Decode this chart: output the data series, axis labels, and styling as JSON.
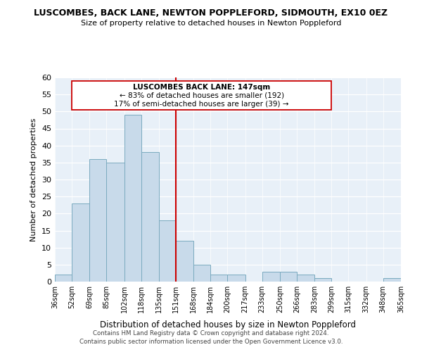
{
  "title": "LUSCOMBES, BACK LANE, NEWTON POPPLEFORD, SIDMOUTH, EX10 0EZ",
  "subtitle": "Size of property relative to detached houses in Newton Poppleford",
  "xlabel": "Distribution of detached houses by size in Newton Poppleford",
  "ylabel": "Number of detached properties",
  "bin_edges": [
    36,
    52,
    69,
    85,
    102,
    118,
    135,
    151,
    168,
    184,
    200,
    217,
    233,
    250,
    266,
    283,
    299,
    315,
    332,
    348,
    365
  ],
  "bin_labels": [
    "36sqm",
    "52sqm",
    "69sqm",
    "85sqm",
    "102sqm",
    "118sqm",
    "135sqm",
    "151sqm",
    "168sqm",
    "184sqm",
    "200sqm",
    "217sqm",
    "233sqm",
    "250sqm",
    "266sqm",
    "283sqm",
    "299sqm",
    "315sqm",
    "332sqm",
    "348sqm",
    "365sqm"
  ],
  "counts": [
    2,
    23,
    36,
    35,
    49,
    38,
    18,
    12,
    5,
    2,
    2,
    0,
    3,
    3,
    2,
    1,
    0,
    0,
    0,
    1
  ],
  "bar_color": "#c8daea",
  "bar_edge_color": "#7aaabf",
  "vline_x": 151,
  "vline_color": "#cc0000",
  "annotation_title": "LUSCOMBES BACK LANE: 147sqm",
  "annotation_line1": "← 83% of detached houses are smaller (192)",
  "annotation_line2": "17% of semi-detached houses are larger (39) →",
  "ylim": [
    0,
    60
  ],
  "yticks": [
    0,
    5,
    10,
    15,
    20,
    25,
    30,
    35,
    40,
    45,
    50,
    55,
    60
  ],
  "footer1": "Contains HM Land Registry data © Crown copyright and database right 2024.",
  "footer2": "Contains public sector information licensed under the Open Government Licence v3.0.",
  "bg_color": "#ffffff",
  "plot_bg_color": "#e8f0f8"
}
